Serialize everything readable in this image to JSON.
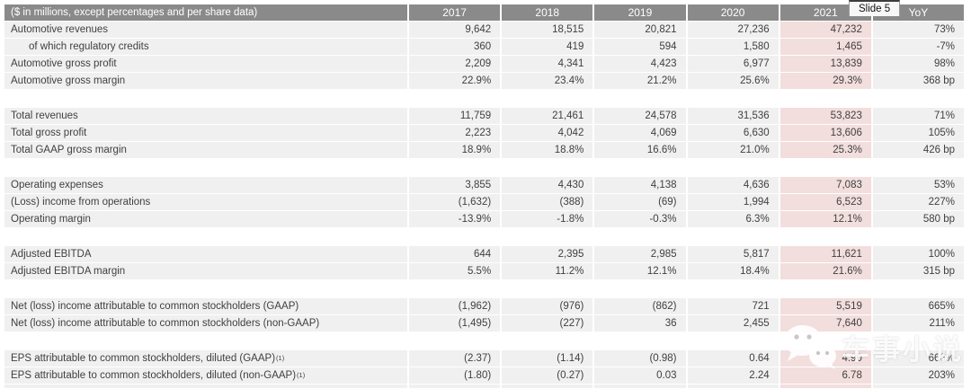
{
  "slide_label": "Slide 5",
  "watermark": {
    "text": "车事小说",
    "icon": "wechat-icon"
  },
  "table": {
    "header_label": "($ in millions, except percentages and per share data)",
    "columns": [
      "2017",
      "2018",
      "2019",
      "2020",
      "2021",
      "YoY"
    ],
    "highlight_column": "2021",
    "colors": {
      "header_bg": "#8a8a8a",
      "header_text": "#ffffff",
      "row_bg": "#f0f0f0",
      "highlight_bg": "#f2dedd",
      "text": "#3f3f3f"
    },
    "rows": [
      {
        "label": "Automotive revenues",
        "values": [
          "9,642",
          "18,515",
          "20,821",
          "27,236",
          "47,232",
          "73%"
        ]
      },
      {
        "label": "of which regulatory credits",
        "indent": true,
        "values": [
          "360",
          "419",
          "594",
          "1,580",
          "1,465",
          "-7%"
        ]
      },
      {
        "label": "Automotive gross profit",
        "values": [
          "2,209",
          "4,341",
          "4,423",
          "6,977",
          "13,839",
          "98%"
        ]
      },
      {
        "label": "Automotive gross margin",
        "values": [
          "22.9%",
          "23.4%",
          "21.2%",
          "25.6%",
          "29.3%",
          "368 bp"
        ]
      },
      {
        "gap": true
      },
      {
        "label": "Total revenues",
        "values": [
          "11,759",
          "21,461",
          "24,578",
          "31,536",
          "53,823",
          "71%"
        ]
      },
      {
        "label": "Total gross profit",
        "values": [
          "2,223",
          "4,042",
          "4,069",
          "6,630",
          "13,606",
          "105%"
        ]
      },
      {
        "label": "Total GAAP gross margin",
        "values": [
          "18.9%",
          "18.8%",
          "16.6%",
          "21.0%",
          "25.3%",
          "426 bp"
        ]
      },
      {
        "gap": true
      },
      {
        "label": "Operating expenses",
        "values": [
          "3,855",
          "4,430",
          "4,138",
          "4,636",
          "7,083",
          "53%"
        ]
      },
      {
        "label": "(Loss) income from operations",
        "values": [
          "(1,632)",
          "(388)",
          "(69)",
          "1,994",
          "6,523",
          "227%"
        ]
      },
      {
        "label": "Operating margin",
        "values": [
          "-13.9%",
          "-1.8%",
          "-0.3%",
          "6.3%",
          "12.1%",
          "580 bp"
        ]
      },
      {
        "gap": true
      },
      {
        "label": "Adjusted EBITDA",
        "values": [
          "644",
          "2,395",
          "2,985",
          "5,817",
          "11,621",
          "100%"
        ]
      },
      {
        "label": "Adjusted EBITDA margin",
        "values": [
          "5.5%",
          "11.2%",
          "12.1%",
          "18.4%",
          "21.6%",
          "315 bp"
        ]
      },
      {
        "gap": true
      },
      {
        "label": "Net (loss) income attributable to common stockholders (GAAP)",
        "values": [
          "(1,962)",
          "(976)",
          "(862)",
          "721",
          "5,519",
          "665%"
        ]
      },
      {
        "label": "Net (loss) income attributable to common stockholders (non-GAAP)",
        "values": [
          "(1,495)",
          "(227)",
          "36",
          "2,455",
          "7,640",
          "211%"
        ]
      },
      {
        "gap": true
      },
      {
        "label": "EPS attributable to common stockholders, diluted (GAAP)",
        "sup": "(1)",
        "values": [
          "(2.37)",
          "(1.14)",
          "(0.98)",
          "0.64",
          "4.90",
          "666%"
        ]
      },
      {
        "label": "EPS attributable to common stockholders, diluted (non-GAAP)",
        "sup": "(1)",
        "values": [
          "(1.80)",
          "(0.27)",
          "0.03",
          "2.24",
          "6.78",
          "203%"
        ]
      }
    ]
  }
}
